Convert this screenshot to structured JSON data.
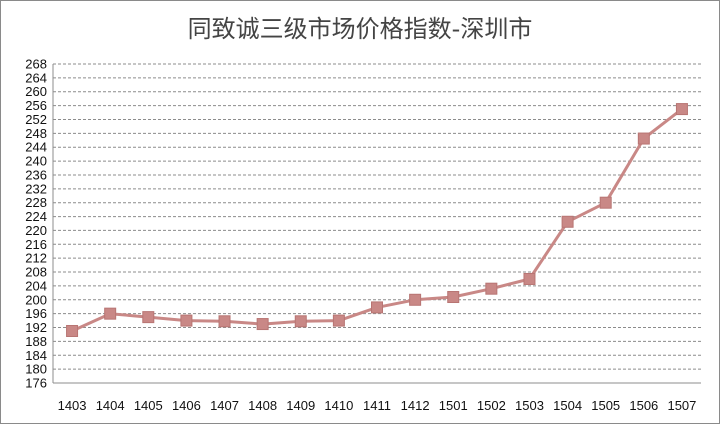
{
  "chart_data": {
    "type": "line",
    "title": "同致诚三级市场价格指数-深圳市",
    "xlabel": "",
    "ylabel": "",
    "categories": [
      "1403",
      "1404",
      "1405",
      "1406",
      "1407",
      "1408",
      "1409",
      "1410",
      "1411",
      "1412",
      "1501",
      "1502",
      "1503",
      "1504",
      "1505",
      "1506",
      "1507"
    ],
    "series": [
      {
        "values": [
          191,
          196,
          195,
          194,
          193.8,
          193,
          193.8,
          194,
          197.8,
          200,
          200.8,
          203.2,
          206,
          222.5,
          228,
          246.5,
          255
        ]
      }
    ],
    "ylim": [
      176,
      268
    ],
    "ytick_step": 4,
    "yticks": [
      "176",
      "180",
      "184",
      "188",
      "192",
      "196",
      "200",
      "204",
      "208",
      "212",
      "216",
      "220",
      "224",
      "228",
      "232",
      "236",
      "240",
      "244",
      "248",
      "252",
      "256",
      "260",
      "264",
      "268"
    ],
    "grid": "horizontal-dashed",
    "legend": "none",
    "colors": {
      "line": "#c98886",
      "marker": "#c98886",
      "marker_edge": "#b87573",
      "grid": "#8c8c8c"
    }
  }
}
